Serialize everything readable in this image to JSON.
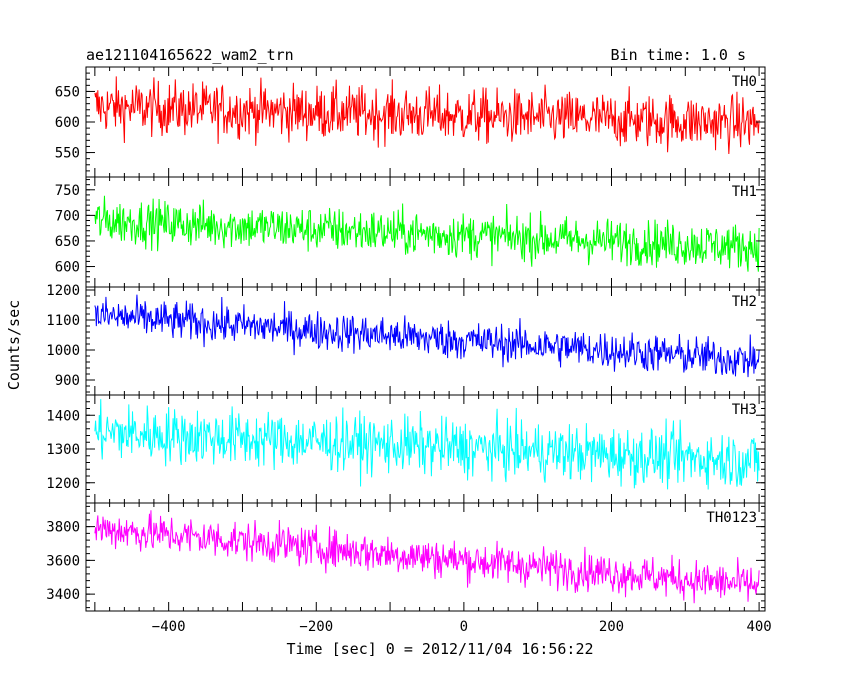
{
  "header": {
    "title": "ae121104165622_wam2_trn",
    "bin_time": "Bin time: 1.0 s"
  },
  "chart_data": {
    "type": "line",
    "xlabel": "Time [sec] 0 = 2012/11/04 16:56:22",
    "ylabel": "Counts/sec",
    "xlim": [
      -512,
      408
    ],
    "x_range": [
      -500,
      400
    ],
    "x_step_sec": 1.0,
    "x_ticks": [
      -400,
      -200,
      0,
      200,
      400
    ],
    "x_tick_labels": [
      "−400",
      "−200",
      "0",
      "200",
      "400"
    ],
    "grid": false,
    "series": [
      {
        "name": "TH0",
        "color": "#ff0000",
        "ylim": [
          510,
          690
        ],
        "y_ticks": [
          550,
          600,
          650
        ],
        "trend": [
          625,
          598
        ],
        "noise": 22,
        "min": 520,
        "max": 690
      },
      {
        "name": "TH1",
        "color": "#00ff00",
        "ylim": [
          560,
          775
        ],
        "y_ticks": [
          600,
          650,
          700,
          750
        ],
        "trend": [
          690,
          638
        ],
        "noise": 22,
        "min": 590,
        "max": 775
      },
      {
        "name": "TH2",
        "color": "#0000ff",
        "ylim": [
          850,
          1210
        ],
        "y_ticks": [
          900,
          1000,
          1100,
          1200
        ],
        "trend": [
          1115,
          965
        ],
        "noise": 32,
        "min": 870,
        "max": 1210
      },
      {
        "name": "TH3",
        "color": "#00ffff",
        "ylim": [
          1140,
          1460
        ],
        "y_ticks": [
          1200,
          1300,
          1400
        ],
        "trend": [
          1350,
          1265
        ],
        "noise": 42,
        "min": 1180,
        "max": 1460
      },
      {
        "name": "TH0123",
        "color": "#ff00ff",
        "ylim": [
          3300,
          3940
        ],
        "y_ticks": [
          3400,
          3600,
          3800
        ],
        "trend": [
          3790,
          3450
        ],
        "noise": 58,
        "min": 3310,
        "max": 3920
      }
    ]
  }
}
